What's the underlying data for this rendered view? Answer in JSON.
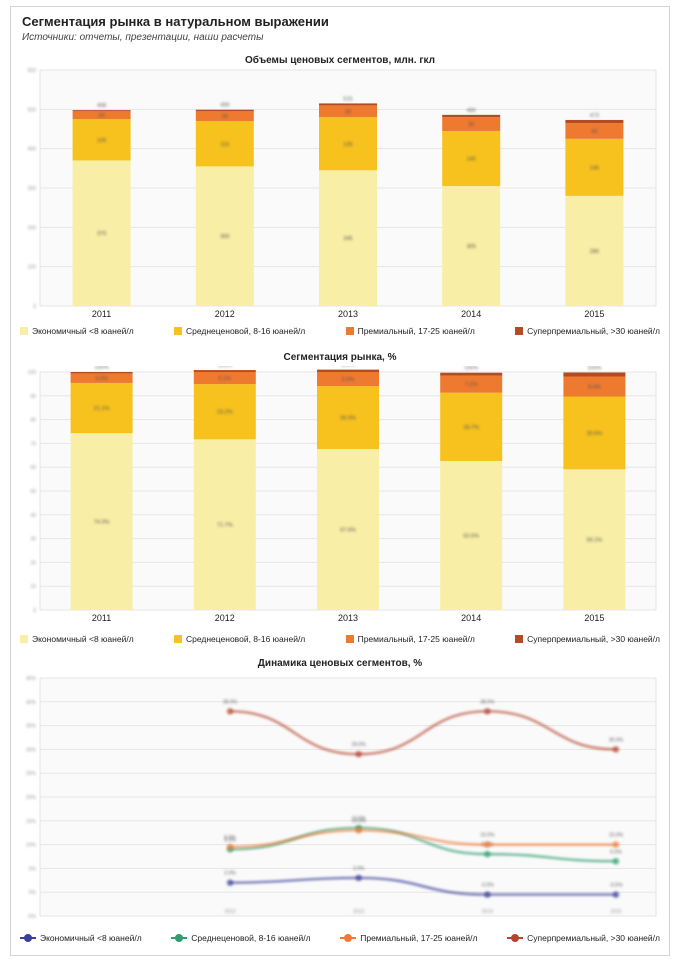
{
  "header": {
    "title": "Сегментация рынка в натуральном выражении",
    "subtitle": "Источники: отчеты, презентации, наши расчеты"
  },
  "colors": {
    "economy": "#f8eea6",
    "mid": "#f7c21e",
    "premium": "#ee7a30",
    "superpremium": "#b44b24",
    "line_economy": "#3a3f9a",
    "line_mid": "#2e9e6e",
    "line_premium": "#f07a35",
    "line_super": "#b5442c"
  },
  "legend_bar": [
    {
      "name": "Экономичный <8 юаней/л",
      "key": "economy"
    },
    {
      "name": "Среднеценовой, 8-16 юаней/л",
      "key": "mid"
    },
    {
      "name": "Премиальный, 17-25 юаней/л",
      "key": "premium"
    },
    {
      "name": "Суперпремиальный, >30 юаней/л",
      "key": "superpremium"
    }
  ],
  "legend_line": [
    {
      "name": "Экономичный <8 юаней/л",
      "key": "line_economy"
    },
    {
      "name": "Среднеценовой, 8-16 юаней/л",
      "key": "line_mid"
    },
    {
      "name": "Премиальный, 17-25 юаней/л",
      "key": "line_premium"
    },
    {
      "name": "Суперпремиальный, >30 юаней/л",
      "key": "line_super"
    }
  ],
  "chart_data": [
    {
      "type": "bar",
      "stacked": true,
      "title": "Объемы ценовых сегментов, млн. гкл",
      "categories": [
        "2011",
        "2012",
        "2013",
        "2014",
        "2015"
      ],
      "ylim": [
        0,
        600
      ],
      "yticks": [
        0,
        100,
        200,
        300,
        400,
        500,
        600
      ],
      "grid": true,
      "legend_position": "bottom",
      "series": [
        {
          "name": "Экономичный <8 юаней/л",
          "values": [
            370,
            355,
            345,
            305,
            280
          ]
        },
        {
          "name": "Среднеценовой, 8-16 юаней/л",
          "values": [
            105,
            115,
            135,
            140,
            145
          ]
        },
        {
          "name": "Премиальный, 17-25 юаней/л",
          "values": [
            20,
            25,
            30,
            35,
            40
          ]
        },
        {
          "name": "Суперпремиальный, >30 юаней/л",
          "values": [
            3,
            4,
            5,
            6,
            8
          ]
        }
      ]
    },
    {
      "type": "bar",
      "stacked": true,
      "title": "Сегментация рынка, %",
      "categories": [
        "2011",
        "2012",
        "2013",
        "2014",
        "2015"
      ],
      "ylim": [
        0,
        100
      ],
      "yticks": [
        0,
        10,
        20,
        30,
        40,
        50,
        60,
        70,
        80,
        90,
        100
      ],
      "grid": true,
      "legend_position": "bottom",
      "series": [
        {
          "name": "Экономичный <8 юаней/л",
          "values": [
            74.3,
            71.7,
            67.6,
            62.6,
            59.1
          ]
        },
        {
          "name": "Среднеценовой, 8-16 юаней/л",
          "values": [
            21.1,
            23.2,
            26.5,
            28.7,
            30.6
          ]
        },
        {
          "name": "Премиальный, 17-25 юаней/л",
          "values": [
            4.0,
            5.1,
            5.9,
            7.2,
            8.4
          ]
        },
        {
          "name": "Суперпремиальный, >30 юаней/л",
          "values": [
            0.6,
            0.8,
            1.0,
            1.2,
            1.7
          ]
        }
      ]
    },
    {
      "type": "line",
      "title": "Динамика ценовых сегментов, %",
      "categories": [
        "2012",
        "2013",
        "2014",
        "2015"
      ],
      "ylim": [
        -5,
        45
      ],
      "yticks": [
        -5,
        0,
        5,
        10,
        15,
        20,
        25,
        30,
        35,
        40,
        45
      ],
      "grid": true,
      "legend_position": "bottom",
      "series": [
        {
          "name": "Экономичный <8 юаней/л",
          "values": [
            2,
            3,
            -0.5,
            -0.5
          ]
        },
        {
          "name": "Среднеценовой, 8-16 юаней/л",
          "values": [
            9,
            13.5,
            8,
            6.5
          ]
        },
        {
          "name": "Премиальный, 17-25 юаней/л",
          "values": [
            9.5,
            13,
            10,
            10
          ]
        },
        {
          "name": "Суперпремиальный, >30 юаней/л",
          "values": [
            38,
            29,
            38,
            30
          ]
        }
      ]
    }
  ]
}
